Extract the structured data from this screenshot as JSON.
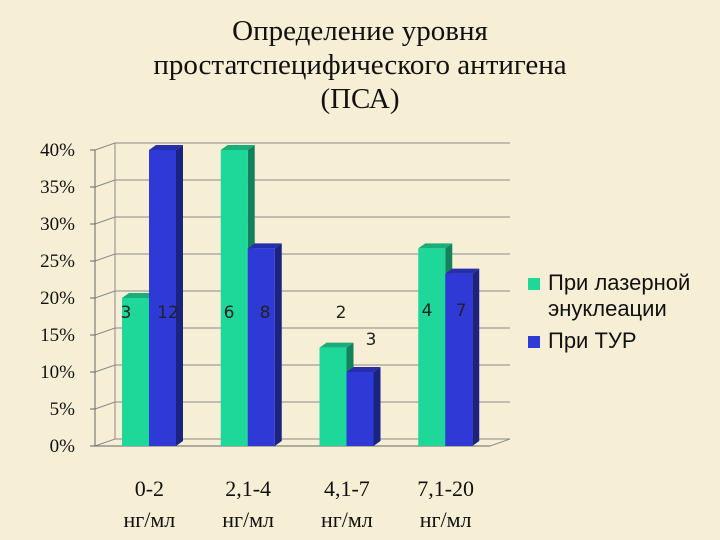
{
  "title_lines": [
    "Определение уровня",
    "простатспецифического антигена",
    "(ПСА)"
  ],
  "chart_data": {
    "type": "bar",
    "title": "Определение уровня простатспецифического антигена (ПСА)",
    "categories_lines": [
      [
        "0-2",
        "нг/мл"
      ],
      [
        "2,1-4",
        "нг/мл"
      ],
      [
        "4,1-7",
        "нг/мл"
      ],
      [
        "7,1-20",
        "нг/мл"
      ]
    ],
    "categories": [
      "0-2 нг/мл",
      "2,1-4 нг/мл",
      "4,1-7 нг/мл",
      "7,1-20 нг/мл"
    ],
    "yticks": [
      "0%",
      "5%",
      "10%",
      "15%",
      "20%",
      "25%",
      "30%",
      "35%",
      "40%"
    ],
    "ylim": [
      0,
      40
    ],
    "series": [
      {
        "name": "При лазерной энуклеации",
        "color": "#1ed89a",
        "values": [
          20,
          40,
          13.3,
          26.7
        ],
        "labels": [
          "3",
          "6",
          "2",
          "4"
        ]
      },
      {
        "name": "При ТУР",
        "color": "#2f39d6",
        "values": [
          40,
          26.7,
          10,
          23.3
        ],
        "labels": [
          "12",
          "8",
          "3",
          "7"
        ]
      }
    ],
    "legend_position": "right",
    "grid": true
  }
}
